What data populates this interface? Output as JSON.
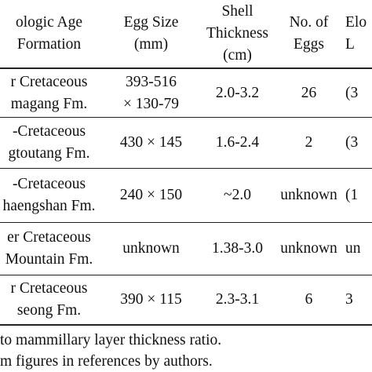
{
  "table": {
    "header": [
      [
        "ologic Age",
        "Formation"
      ],
      [
        "Egg Size",
        "(mm)"
      ],
      [
        "Shell",
        "Thickness",
        "(cm)"
      ],
      [
        "No. of",
        "Eggs"
      ],
      [
        "Elo",
        "L"
      ]
    ],
    "rows": [
      [
        [
          "r Cretaceous",
          "magang Fm."
        ],
        [
          "393-516",
          "× 130-79"
        ],
        [
          "2.0-3.2"
        ],
        [
          "26"
        ],
        [
          "(3"
        ]
      ],
      [
        [
          "-Cretaceous",
          "gtoutang Fm."
        ],
        [
          "430 × 145"
        ],
        [
          "1.6-2.4"
        ],
        [
          "2"
        ],
        [
          "(3"
        ]
      ],
      [
        [
          "-Cretaceous",
          "haengshan Fm."
        ],
        [
          "240 × 150"
        ],
        [
          "~2.0"
        ],
        [
          "unknown"
        ],
        [
          "(1"
        ]
      ],
      [
        [
          "er Cretaceous",
          "Mountain Fm."
        ],
        [
          "unknown"
        ],
        [
          "1.38-3.0"
        ],
        [
          "unknown"
        ],
        [
          "un"
        ]
      ],
      [
        [
          "r Cretaceous",
          "seong Fm."
        ],
        [
          "390 × 115"
        ],
        [
          "2.3-3.1"
        ],
        [
          "6"
        ],
        [
          "3"
        ]
      ]
    ],
    "footnotes": [
      "to mammillary layer thickness ratio.",
      "m figures in references by authors."
    ]
  }
}
